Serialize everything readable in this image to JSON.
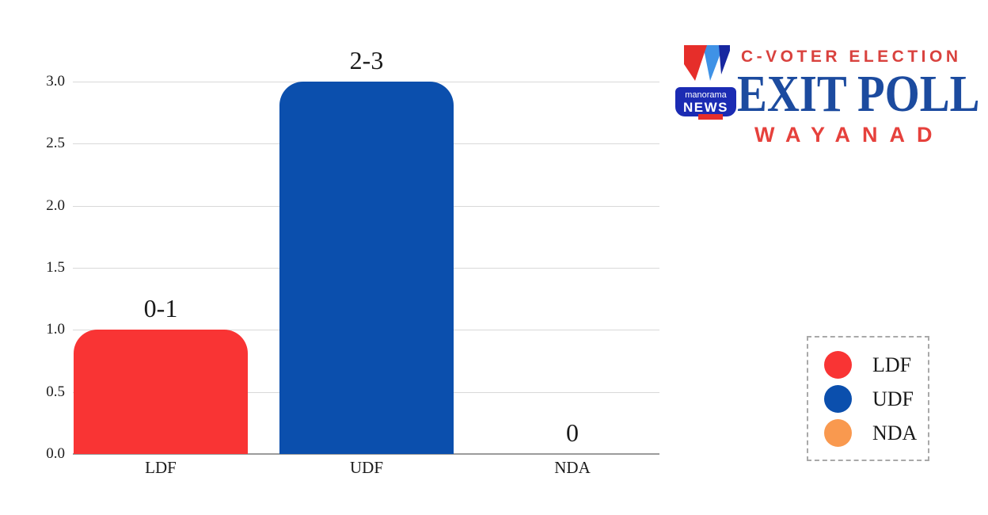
{
  "header": {
    "brand_top": "C-VOTER ELECTION",
    "brand_main": "EXIT POLL",
    "region": "WAYANAD",
    "channel_logo": {
      "line1": "manorama",
      "line2": "NEWS"
    }
  },
  "chart_data": {
    "type": "bar",
    "title": "C-VOTER ELECTION EXIT POLL WAYANAD",
    "categories": [
      "LDF",
      "UDF",
      "NDA"
    ],
    "values": [
      1,
      3,
      0
    ],
    "value_labels": [
      "0-1",
      "2-3",
      "0"
    ],
    "bar_colors": [
      "#f93434",
      "#0b4fad",
      "#f9994f"
    ],
    "xlabel": "",
    "ylabel": "",
    "ylim": [
      0,
      3
    ],
    "yticks": [
      0,
      0.5,
      1,
      1.5,
      2,
      2.5,
      3
    ],
    "ytick_labels": [
      "0.0",
      "0.5",
      "1.0",
      "1.5",
      "2.0",
      "2.5",
      "3.0"
    ],
    "grid": true,
    "legend": {
      "position": "lower right",
      "items": [
        {
          "label": "LDF",
          "color": "#f93434"
        },
        {
          "label": "UDF",
          "color": "#0b4fad"
        },
        {
          "label": "NDA",
          "color": "#f9994f"
        }
      ]
    }
  },
  "colors": {
    "background": "#ffffff",
    "text": "#1a1a1a",
    "gridline": "#d9d9d9",
    "axis_line": "#9c9c9c",
    "legend_border": "#a9a9a9",
    "brand_red": "#d9423e",
    "brand_navy": "#1c4b9f",
    "region_red": "#e6413c",
    "logo_blue": "#1b2bb3",
    "logo_red": "#e62e2a",
    "logo_sky": "#3f92e6",
    "logo_navy": "#1727a0"
  }
}
